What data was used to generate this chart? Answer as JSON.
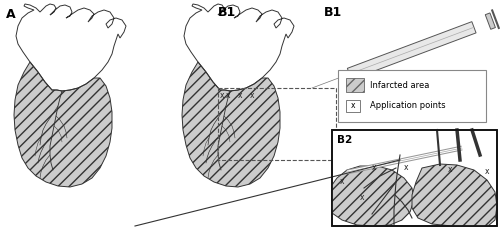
{
  "fig_width": 5.0,
  "fig_height": 2.29,
  "dpi": 100,
  "background_color": "#ffffff",
  "label_A": "A",
  "label_B1": "B1",
  "label_B2": "B2",
  "legend_infarcted": "Infarcted area",
  "legend_apppoints": "Application points",
  "hatch_pattern": "///",
  "heart_outline_color": "#333333",
  "line_width": 0.7,
  "inset_border": "#111111",
  "x_color": "#222222",
  "legend_box_color": "#888888",
  "syringe_body_color": "#cccccc",
  "syringe_edge_color": "#555555",
  "infarcted_face": "#cccccc",
  "dotted_color": "#555555"
}
